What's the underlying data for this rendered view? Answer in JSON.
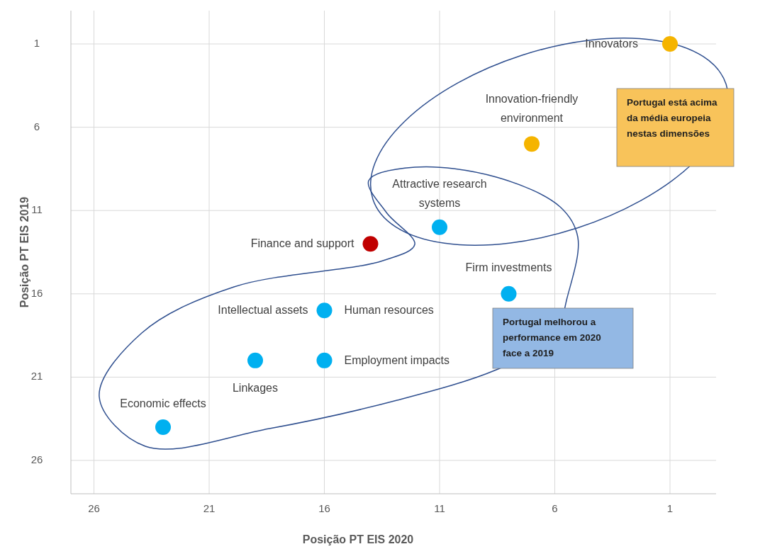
{
  "chart_data": {
    "type": "scatter",
    "xlabel": "Posição  PT EIS 2020",
    "ylabel": "Posição  PT EIS 2019",
    "x": [
      1,
      7,
      11,
      14,
      8,
      16,
      19,
      16,
      23
    ],
    "values": [
      1,
      7,
      12,
      13,
      16,
      17,
      20,
      20,
      24
    ],
    "colors": [
      "#f5b400",
      "#f5b400",
      "#00b0f0",
      "#c00000",
      "#00b0f0",
      "#00b0f0",
      "#00b0f0",
      "#00b0f0",
      "#00b0f0"
    ],
    "xlim": [
      27,
      -1
    ],
    "ylim": [
      28,
      -1
    ],
    "xticks": [
      26,
      21,
      16,
      11,
      6,
      1
    ],
    "yticks": [
      1,
      6,
      11,
      16,
      21,
      26
    ],
    "grid": true,
    "marker": "circle",
    "annotations": [
      {
        "text": "Innovators",
        "x": 1,
        "y": 1
      },
      {
        "text": "Innovation-friendly environment",
        "x": 7,
        "y": 7
      },
      {
        "text": "Attractive research systems",
        "x": 11,
        "y": 12
      },
      {
        "text": "Finance and support",
        "x": 14,
        "y": 13
      },
      {
        "text": "Firm investments",
        "x": 8,
        "y": 16
      },
      {
        "text": "Intellectual assets",
        "x": 16,
        "y": 17
      },
      {
        "text": "Human resources",
        "x": 16,
        "y": 17
      },
      {
        "text": "Linkages",
        "x": 19,
        "y": 20
      },
      {
        "text": "Employment impacts",
        "x": 16,
        "y": 20
      },
      {
        "text": "Economic effects",
        "x": 23,
        "y": 24
      },
      "Portugal está acima da média europeia nestas dimensões",
      "Portugal melhorou a performance em 2020 face a 2019"
    ]
  }
}
